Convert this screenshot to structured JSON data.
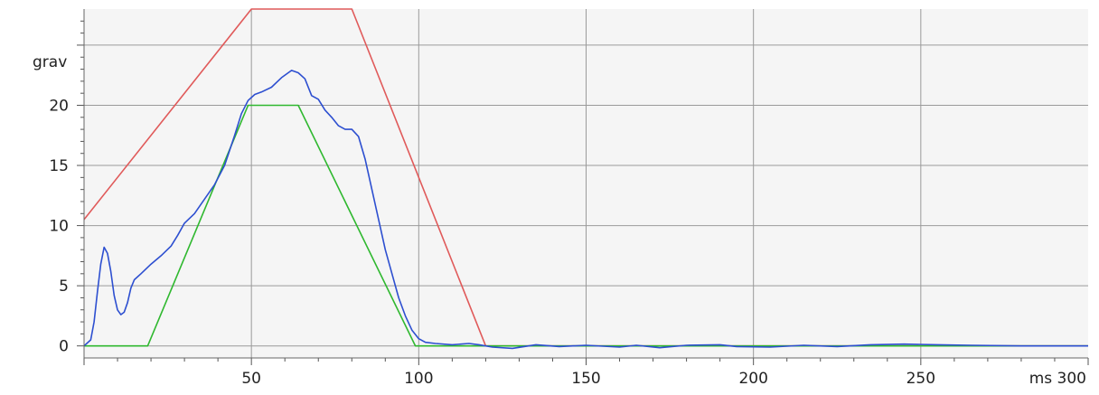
{
  "chart_data": {
    "type": "line",
    "xlabel": "ms",
    "ylabel": "grav",
    "xlim": [
      0,
      300
    ],
    "ylim": [
      -1,
      28
    ],
    "x_ticks": [
      50,
      100,
      150,
      200,
      250,
      300
    ],
    "x_tick_labels": [
      "50",
      "100",
      "150",
      "200",
      "250",
      "300"
    ],
    "y_ticks": [
      0,
      5,
      10,
      15,
      20
    ],
    "y_tick_labels": [
      "0",
      "5",
      "10",
      "15",
      "20"
    ],
    "grid": true,
    "colors": {
      "plot_background": "#f5f5f5",
      "grid": "#9a9a9a",
      "upper_corridor": "#e05a5a",
      "lower_corridor": "#2fb82f",
      "measured": "#2d4fd0"
    },
    "series": [
      {
        "key": "upper_corridor",
        "points": [
          [
            0,
            10.5
          ],
          [
            50,
            28
          ],
          [
            80,
            28
          ],
          [
            120,
            0
          ],
          [
            300,
            0
          ]
        ]
      },
      {
        "key": "lower_corridor",
        "points": [
          [
            0,
            0
          ],
          [
            19,
            0
          ],
          [
            49,
            20
          ],
          [
            64,
            20
          ],
          [
            99,
            0
          ],
          [
            300,
            0
          ]
        ]
      },
      {
        "key": "measured",
        "points": [
          [
            0,
            0
          ],
          [
            2,
            0.5
          ],
          [
            3,
            2
          ],
          [
            4,
            4.5
          ],
          [
            5,
            6.8
          ],
          [
            6,
            8.2
          ],
          [
            7,
            7.7
          ],
          [
            8,
            6.2
          ],
          [
            9,
            4.2
          ],
          [
            10,
            3.0
          ],
          [
            11,
            2.6
          ],
          [
            12,
            2.8
          ],
          [
            13,
            3.6
          ],
          [
            14,
            4.8
          ],
          [
            15,
            5.5
          ],
          [
            17,
            6.0
          ],
          [
            20,
            6.8
          ],
          [
            23,
            7.5
          ],
          [
            26,
            8.3
          ],
          [
            28,
            9.2
          ],
          [
            30,
            10.2
          ],
          [
            33,
            11.0
          ],
          [
            36,
            12.2
          ],
          [
            39,
            13.4
          ],
          [
            42,
            15.0
          ],
          [
            45,
            17.5
          ],
          [
            47,
            19.3
          ],
          [
            49,
            20.4
          ],
          [
            51,
            20.9
          ],
          [
            53,
            21.1
          ],
          [
            56,
            21.5
          ],
          [
            59,
            22.3
          ],
          [
            62,
            22.9
          ],
          [
            64,
            22.7
          ],
          [
            66,
            22.2
          ],
          [
            68,
            20.8
          ],
          [
            70,
            20.5
          ],
          [
            72,
            19.6
          ],
          [
            74,
            19.0
          ],
          [
            76,
            18.3
          ],
          [
            78,
            18.0
          ],
          [
            80,
            18.0
          ],
          [
            82,
            17.4
          ],
          [
            84,
            15.5
          ],
          [
            86,
            13.0
          ],
          [
            88,
            10.5
          ],
          [
            90,
            8.0
          ],
          [
            92,
            6.0
          ],
          [
            94,
            4.0
          ],
          [
            96,
            2.5
          ],
          [
            98,
            1.3
          ],
          [
            100,
            0.6
          ],
          [
            102,
            0.3
          ],
          [
            105,
            0.2
          ],
          [
            110,
            0.1
          ],
          [
            115,
            0.2
          ],
          [
            118,
            0.1
          ],
          [
            122,
            -0.1
          ],
          [
            128,
            -0.2
          ],
          [
            135,
            0.1
          ],
          [
            142,
            -0.05
          ],
          [
            150,
            0.05
          ],
          [
            160,
            -0.1
          ],
          [
            165,
            0.05
          ],
          [
            172,
            -0.15
          ],
          [
            180,
            0.05
          ],
          [
            190,
            0.1
          ],
          [
            195,
            -0.05
          ],
          [
            205,
            -0.1
          ],
          [
            215,
            0.05
          ],
          [
            225,
            -0.05
          ],
          [
            235,
            0.1
          ],
          [
            245,
            0.15
          ],
          [
            255,
            0.1
          ],
          [
            265,
            0.05
          ],
          [
            280,
            0.0
          ],
          [
            300,
            0.0
          ]
        ]
      }
    ]
  }
}
